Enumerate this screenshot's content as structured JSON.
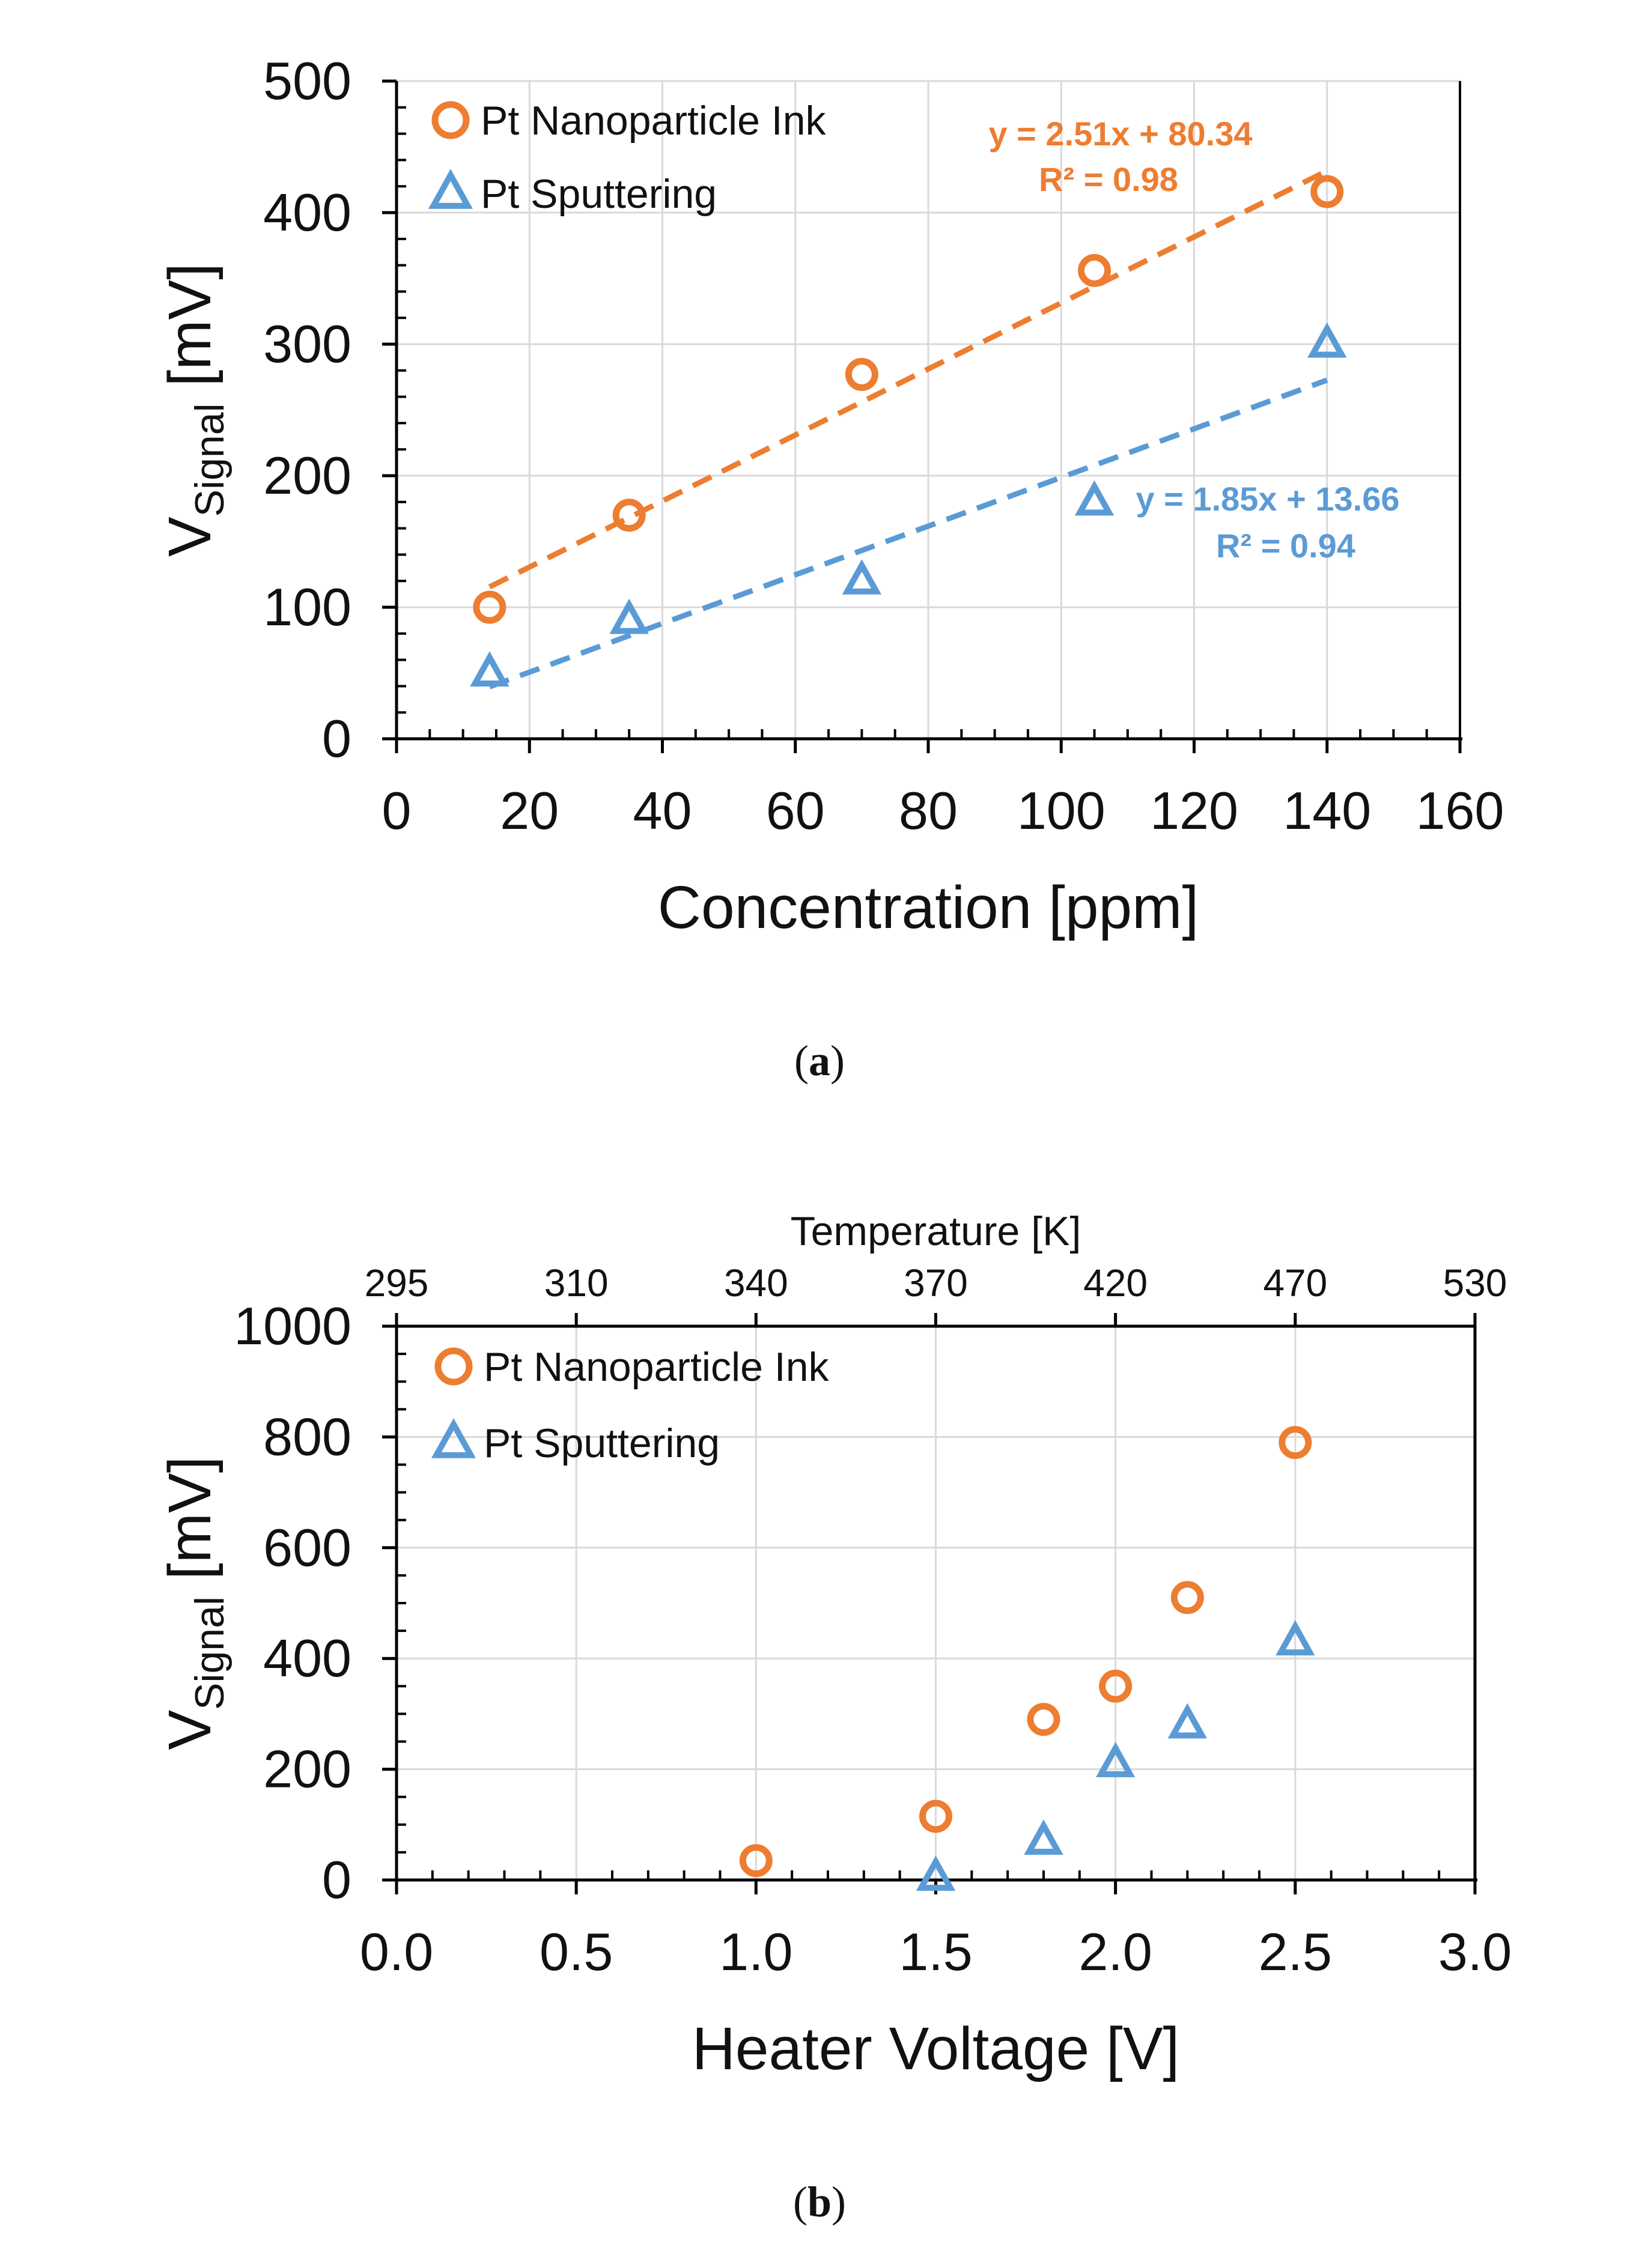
{
  "colors": {
    "orange": "#ED7D31",
    "blue": "#5B9BD5",
    "grid": "#D9D9D9",
    "axis": "#000000"
  },
  "chart_data": [
    {
      "type": "scatter",
      "caption_letter": "a",
      "xlabel": "Concentration [ppm]",
      "ylabel_main": "V",
      "ylabel_sub": "Signal",
      "ylabel_unit": " [mV]",
      "xlim": [
        0,
        160
      ],
      "ylim": [
        0,
        500
      ],
      "xticks": [
        "0",
        "20",
        "40",
        "60",
        "80",
        "100",
        "120",
        "140",
        "160"
      ],
      "yticks": [
        "0",
        "100",
        "200",
        "300",
        "400",
        "500"
      ],
      "legend": [
        "Pt Nanoparticle Ink",
        "Pt Sputtering"
      ],
      "legend_position": "top-left",
      "grid": true,
      "series": [
        {
          "name": "Pt Nanoparticle Ink",
          "marker": "circle",
          "color": "#ED7D31",
          "x": [
            14,
            35,
            70,
            105,
            140
          ],
          "y": [
            100,
            170,
            277,
            356,
            416
          ],
          "trendline": {
            "slope": 2.51,
            "intercept": 80.34,
            "equation": "y = 2.51x + 80.34",
            "r2": "R² = 0.98"
          }
        },
        {
          "name": "Pt Sputtering",
          "marker": "triangle",
          "color": "#5B9BD5",
          "x": [
            14,
            35,
            70,
            105,
            140
          ],
          "y": [
            50,
            90,
            120,
            180,
            300
          ],
          "trendline": {
            "slope": 1.85,
            "intercept": 13.66,
            "equation": "y = 1.85x + 13.66",
            "r2": "R² = 0.94"
          }
        }
      ]
    },
    {
      "type": "scatter",
      "caption_letter": "b",
      "xlabel": "Heater Voltage [V]",
      "x2label": "Temperature [K]",
      "ylabel_main": "V",
      "ylabel_sub": "Signal",
      "ylabel_unit": " [mV]",
      "xlim": [
        0,
        3
      ],
      "ylim": [
        0,
        1000
      ],
      "xticks": [
        "0.0",
        "0.5",
        "1.0",
        "1.5",
        "2.0",
        "2.5",
        "3.0"
      ],
      "x2ticks": [
        "295",
        "310",
        "340",
        "370",
        "420",
        "470",
        "530"
      ],
      "yticks": [
        "0",
        "200",
        "400",
        "600",
        "800",
        "1000"
      ],
      "legend": [
        "Pt Nanoparticle Ink",
        "Pt Sputtering"
      ],
      "legend_position": "top-left",
      "grid": true,
      "series": [
        {
          "name": "Pt Nanoparticle Ink",
          "marker": "circle",
          "color": "#ED7D31",
          "x": [
            1.0,
            1.5,
            1.8,
            2.0,
            2.2,
            2.5
          ],
          "y": [
            35,
            115,
            290,
            350,
            510,
            790
          ]
        },
        {
          "name": "Pt Sputtering",
          "marker": "triangle",
          "color": "#5B9BD5",
          "x": [
            1.5,
            1.8,
            2.0,
            2.2,
            2.5
          ],
          "y": [
            5,
            70,
            210,
            280,
            430
          ]
        }
      ]
    }
  ]
}
